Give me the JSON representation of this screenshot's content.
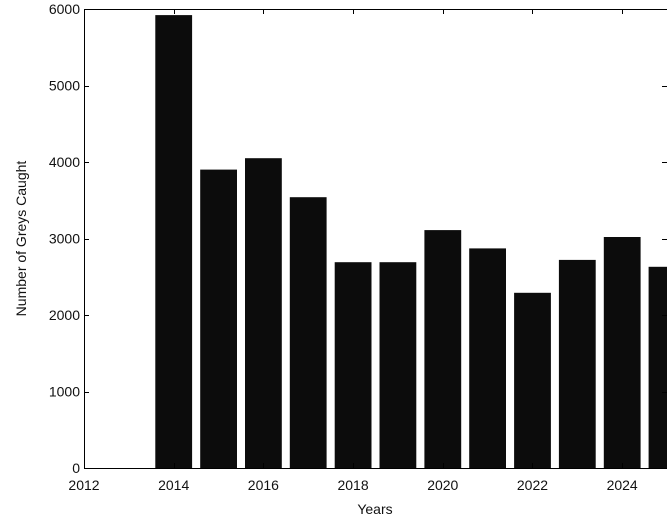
{
  "chart_data": {
    "type": "bar",
    "title": "",
    "xlabel": "Years",
    "ylabel": "Number of Greys Caught",
    "x": [
      2014,
      2015,
      2016,
      2017,
      2018,
      2019,
      2020,
      2021,
      2022,
      2023,
      2024,
      2025
    ],
    "values": [
      5920,
      3900,
      4050,
      3540,
      2690,
      2690,
      3110,
      2870,
      2290,
      2720,
      3020,
      2630
    ],
    "xlim": [
      2012,
      2025
    ],
    "ylim": [
      0,
      6000
    ],
    "xticks": [
      2012,
      2014,
      2016,
      2018,
      2020,
      2022,
      2024
    ],
    "yticks": [
      0,
      1000,
      2000,
      3000,
      4000,
      5000,
      6000
    ],
    "grid": false,
    "bar_color": "#0c0c0c"
  }
}
